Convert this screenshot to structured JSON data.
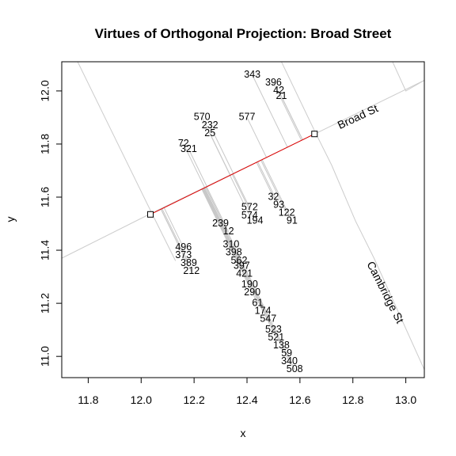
{
  "chart_data": {
    "type": "scatter",
    "title": "Virtues of Orthogonal Projection: Broad Street",
    "xlabel": "x",
    "ylabel": "y",
    "xlim": [
      11.7,
      13.07
    ],
    "ylim": [
      10.92,
      12.11
    ],
    "xticks": [
      11.8,
      12.0,
      12.2,
      12.4,
      12.6,
      12.8,
      13.0
    ],
    "yticks": [
      11.0,
      11.2,
      11.4,
      11.6,
      11.8,
      12.0
    ],
    "xtick_labels": [
      "11.8",
      "12.0",
      "12.2",
      "12.4",
      "12.6",
      "12.8",
      "13.0"
    ],
    "ytick_labels": [
      "11.0",
      "11.2",
      "11.4",
      "11.6",
      "11.8",
      "12.0"
    ],
    "grid": false,
    "colors": {
      "segment": "#dd0000",
      "road": "#cccccc",
      "projection": "#c8c8c8",
      "frame": "#000000"
    },
    "roads": [
      {
        "name": "",
        "points": [
          [
            11.7,
            11.37
          ],
          [
            12.04,
            11.54
          ],
          [
            12.66,
            11.84
          ],
          [
            13.07,
            12.04
          ]
        ]
      },
      {
        "name": "",
        "points": [
          [
            11.76,
            12.11
          ],
          [
            12.04,
            11.54
          ],
          [
            12.13,
            11.36
          ]
        ]
      },
      {
        "name": "",
        "points": [
          [
            12.53,
            12.11
          ],
          [
            12.66,
            11.84
          ],
          [
            12.72,
            11.72
          ],
          [
            12.81,
            11.51
          ],
          [
            12.88,
            11.37
          ],
          [
            13.07,
            10.95
          ]
        ]
      },
      {
        "name": "",
        "points": [
          [
            12.95,
            12.11
          ],
          [
            13.0,
            12.0
          ],
          [
            13.07,
            12.04
          ]
        ]
      }
    ],
    "street_labels": [
      {
        "text": "Broad St",
        "x": 12.82,
        "y": 11.9,
        "angle": -25
      },
      {
        "text": "Cambridge St",
        "x": 12.92,
        "y": 11.24,
        "angle": 63
      }
    ],
    "segment": {
      "from": [
        12.035,
        11.535
      ],
      "to": [
        12.655,
        11.838
      ]
    },
    "points": [
      {
        "id": "343",
        "x": 12.42,
        "y": 12.06
      },
      {
        "id": "396",
        "x": 12.5,
        "y": 12.03
      },
      {
        "id": "42",
        "x": 12.52,
        "y": 12.0
      },
      {
        "id": "21",
        "x": 12.53,
        "y": 11.98
      },
      {
        "id": "570",
        "x": 12.23,
        "y": 11.9
      },
      {
        "id": "577",
        "x": 12.4,
        "y": 11.9
      },
      {
        "id": "232",
        "x": 12.26,
        "y": 11.87
      },
      {
        "id": "25",
        "x": 12.26,
        "y": 11.84
      },
      {
        "id": "72",
        "x": 12.16,
        "y": 11.8
      },
      {
        "id": "321",
        "x": 12.18,
        "y": 11.78
      },
      {
        "id": "32",
        "x": 12.5,
        "y": 11.6
      },
      {
        "id": "93",
        "x": 12.52,
        "y": 11.57
      },
      {
        "id": "572",
        "x": 12.41,
        "y": 11.56
      },
      {
        "id": "122",
        "x": 12.55,
        "y": 11.54
      },
      {
        "id": "574",
        "x": 12.41,
        "y": 11.53
      },
      {
        "id": "194",
        "x": 12.43,
        "y": 11.51
      },
      {
        "id": "91",
        "x": 12.57,
        "y": 11.51
      },
      {
        "id": "239",
        "x": 12.3,
        "y": 11.5
      },
      {
        "id": "12",
        "x": 12.33,
        "y": 11.47
      },
      {
        "id": "310",
        "x": 12.34,
        "y": 11.42
      },
      {
        "id": "496",
        "x": 12.16,
        "y": 11.41
      },
      {
        "id": "398",
        "x": 12.35,
        "y": 11.39
      },
      {
        "id": "373",
        "x": 12.16,
        "y": 11.38
      },
      {
        "id": "562",
        "x": 12.37,
        "y": 11.36
      },
      {
        "id": "389",
        "x": 12.18,
        "y": 11.35
      },
      {
        "id": "397",
        "x": 12.38,
        "y": 11.34
      },
      {
        "id": "212",
        "x": 12.19,
        "y": 11.32
      },
      {
        "id": "421",
        "x": 12.39,
        "y": 11.31
      },
      {
        "id": "190",
        "x": 12.41,
        "y": 11.27
      },
      {
        "id": "290",
        "x": 12.42,
        "y": 11.24
      },
      {
        "id": "61",
        "x": 12.44,
        "y": 11.2
      },
      {
        "id": "174",
        "x": 12.46,
        "y": 11.17
      },
      {
        "id": "547",
        "x": 12.48,
        "y": 11.14
      },
      {
        "id": "523",
        "x": 12.5,
        "y": 11.1
      },
      {
        "id": "521",
        "x": 12.51,
        "y": 11.07
      },
      {
        "id": "138",
        "x": 12.53,
        "y": 11.04
      },
      {
        "id": "59",
        "x": 12.55,
        "y": 11.01
      },
      {
        "id": "340",
        "x": 12.56,
        "y": 10.98
      },
      {
        "id": "508",
        "x": 12.58,
        "y": 10.95
      }
    ]
  }
}
